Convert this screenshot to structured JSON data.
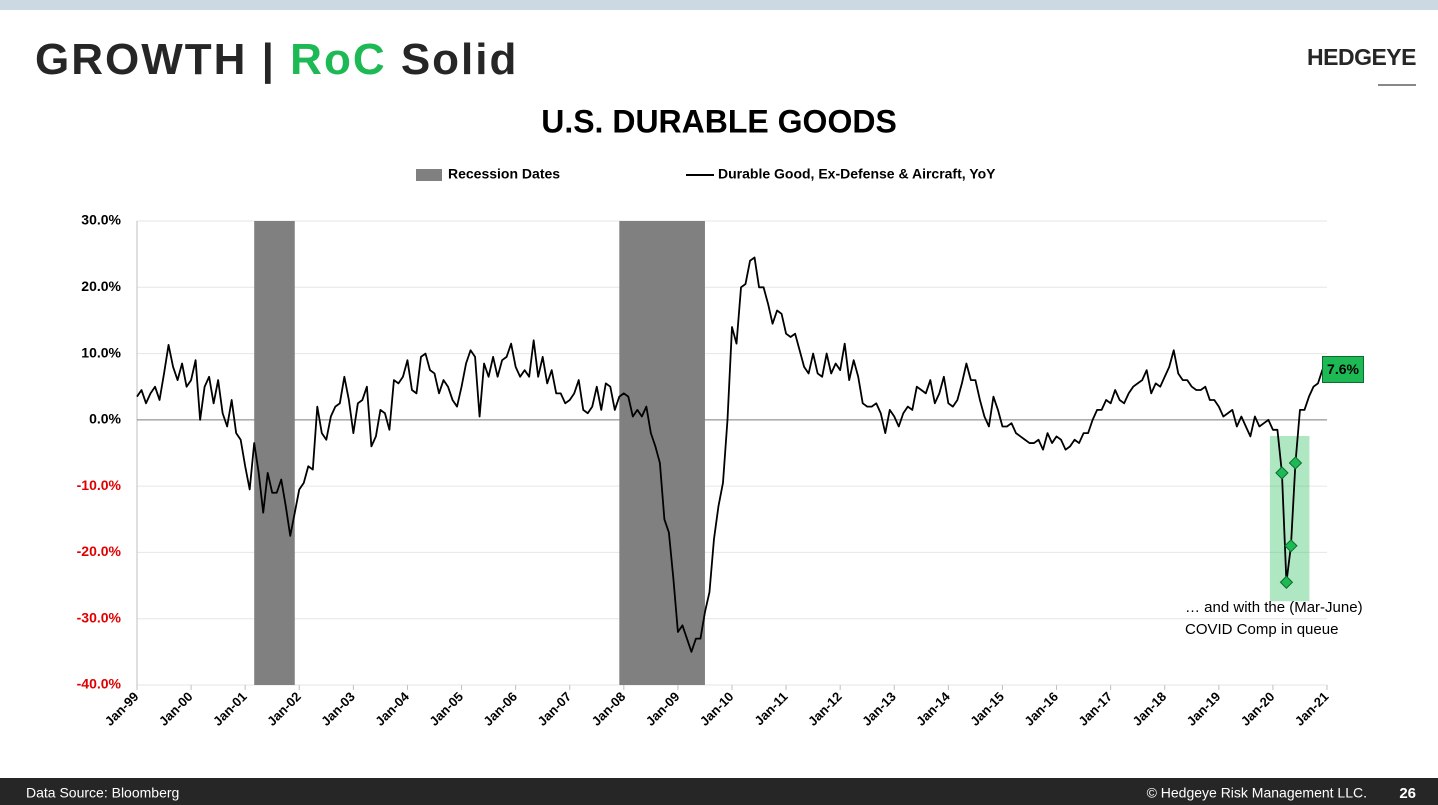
{
  "header": {
    "title_parts": [
      "GROWTH | ",
      "RoC",
      " Solid"
    ],
    "logo": "HEDGEYE"
  },
  "footer": {
    "source": "Data Source: Bloomberg",
    "copyright": "© Hedgeye Risk Management LLC.",
    "page": "26"
  },
  "chart_data": {
    "type": "line",
    "title": "U.S. DURABLE GOODS",
    "categories": [
      "Jan-99",
      null,
      null,
      null,
      null,
      null,
      null,
      null,
      null,
      null,
      null,
      null,
      "Jan-00",
      null,
      null,
      null,
      null,
      null,
      null,
      null,
      null,
      null,
      null,
      null,
      "Jan-01",
      null,
      null,
      null,
      null,
      null,
      null,
      null,
      null,
      null,
      null,
      null,
      "Jan-02",
      null,
      null,
      null,
      null,
      null,
      null,
      null,
      null,
      null,
      null,
      null,
      "Jan-03",
      null,
      null,
      null,
      null,
      null,
      null,
      null,
      null,
      null,
      null,
      null,
      "Jan-04",
      null,
      null,
      null,
      null,
      null,
      null,
      null,
      null,
      null,
      null,
      null,
      "Jan-05",
      null,
      null,
      null,
      null,
      null,
      null,
      null,
      null,
      null,
      null,
      null,
      "Jan-06",
      null,
      null,
      null,
      null,
      null,
      null,
      null,
      null,
      null,
      null,
      null,
      "Jan-07",
      null,
      null,
      null,
      null,
      null,
      null,
      null,
      null,
      null,
      null,
      null,
      "Jan-08",
      null,
      null,
      null,
      null,
      null,
      null,
      null,
      null,
      null,
      null,
      null,
      "Jan-09",
      null,
      null,
      null,
      null,
      null,
      null,
      null,
      null,
      null,
      null,
      null,
      "Jan-10",
      null,
      null,
      null,
      null,
      null,
      null,
      null,
      null,
      null,
      null,
      null,
      "Jan-11",
      null,
      null,
      null,
      null,
      null,
      null,
      null,
      null,
      null,
      null,
      null,
      "Jan-12",
      null,
      null,
      null,
      null,
      null,
      null,
      null,
      null,
      null,
      null,
      null,
      "Jan-13",
      null,
      null,
      null,
      null,
      null,
      null,
      null,
      null,
      null,
      null,
      null,
      "Jan-14",
      null,
      null,
      null,
      null,
      null,
      null,
      null,
      null,
      null,
      null,
      null,
      "Jan-15",
      null,
      null,
      null,
      null,
      null,
      null,
      null,
      null,
      null,
      null,
      null,
      "Jan-16",
      null,
      null,
      null,
      null,
      null,
      null,
      null,
      null,
      null,
      null,
      null,
      "Jan-17",
      null,
      null,
      null,
      null,
      null,
      null,
      null,
      null,
      null,
      null,
      null,
      "Jan-18",
      null,
      null,
      null,
      null,
      null,
      null,
      null,
      null,
      null,
      null,
      null,
      "Jan-19",
      null,
      null,
      null,
      null,
      null,
      null,
      null,
      null,
      null,
      null,
      null,
      "Jan-20",
      null,
      null,
      null,
      null,
      null,
      null,
      null,
      null,
      null,
      null,
      null,
      "Jan-21"
    ],
    "series": [
      {
        "name": "Recession Dates",
        "color": "#808080",
        "spans": [
          [
            26,
            35
          ],
          [
            107,
            126
          ]
        ]
      },
      {
        "name": "Durable Good, Ex-Defense & Aircraft, YoY",
        "color": "#000000",
        "values": [
          3.5,
          4.5,
          2.5,
          4,
          5,
          3,
          7,
          11.3,
          8,
          6,
          8.5,
          5,
          6,
          9,
          0,
          5,
          6.5,
          2.5,
          6,
          1,
          -1,
          3,
          -2,
          -3,
          -7,
          -10.5,
          -3.5,
          -8,
          -14,
          -8,
          -11,
          -11,
          -9,
          -13,
          -17.5,
          -14,
          -10.5,
          -9.5,
          -7,
          -7.5,
          2,
          -2,
          -3,
          0.5,
          2,
          2.5,
          6.5,
          3,
          -2,
          2.5,
          3,
          5,
          -4,
          -2.5,
          1.5,
          1,
          -1.5,
          6,
          5.5,
          6.5,
          9,
          4.5,
          4,
          9.5,
          10,
          7.5,
          7,
          4,
          6,
          5,
          3,
          2,
          5,
          8.5,
          10.5,
          9.5,
          0.5,
          8.5,
          6.5,
          9.5,
          6.5,
          9,
          9.5,
          11.5,
          8,
          6.5,
          7.5,
          6.5,
          12,
          6.5,
          9.5,
          5.5,
          7.5,
          4,
          4,
          2.5,
          3,
          4,
          6,
          1.5,
          1,
          2,
          5,
          1.5,
          5.5,
          5,
          1.5,
          3.5,
          4,
          3.5,
          0.5,
          1.5,
          0.5,
          2,
          -2,
          -4,
          -6.5,
          -15,
          -17,
          -24,
          -32,
          -31,
          -33,
          -35,
          -33,
          -33,
          -29,
          -26,
          -18,
          -13,
          -9.5,
          0,
          14,
          11.5,
          20,
          20.5,
          24,
          24.5,
          20,
          20,
          17.5,
          14.5,
          16.5,
          16,
          13,
          12.5,
          13,
          10.5,
          8,
          7,
          10,
          7,
          6.5,
          10,
          7,
          8.5,
          7.5,
          11.5,
          6,
          9,
          6.5,
          2.5,
          2,
          2,
          2.5,
          1,
          -2,
          1.5,
          0.5,
          -1,
          1,
          2,
          1.5,
          5,
          4.5,
          4,
          6,
          2.5,
          4,
          6.5,
          2.5,
          2,
          3,
          5.5,
          8.5,
          6,
          6,
          3,
          0.5,
          -1,
          3.5,
          1.5,
          -1,
          -1,
          -0.5,
          -2,
          -2.5,
          -3,
          -3.5,
          -3.5,
          -3,
          -4.5,
          -2,
          -3.5,
          -2.5,
          -3,
          -4.5,
          -4,
          -3,
          -3.5,
          -2,
          -2,
          0,
          1.5,
          1.5,
          3,
          2.5,
          4.5,
          3,
          2.5,
          4,
          5,
          5.5,
          6,
          7.5,
          4,
          5.5,
          5,
          6.5,
          8,
          10.5,
          7,
          6,
          6,
          5,
          4.5,
          4.5,
          5,
          3,
          3,
          2,
          0.5,
          1,
          1.5,
          -1,
          0.5,
          -1,
          -2.5,
          0.5,
          -1,
          -0.5,
          0,
          -1.5,
          -1.5,
          -8,
          -24.5,
          -19,
          -6.5,
          1.5,
          1.5,
          3.5,
          5,
          5.5,
          7.6,
          null
        ]
      }
    ],
    "end_label": "7.6%",
    "highlight": {
      "indices": [
        254,
        255,
        256,
        257
      ],
      "color": "#1db954"
    },
    "annotation": [
      "… and with the (Mar-June)",
      "COVID Comp in queue"
    ],
    "ylim": [
      -40,
      30
    ],
    "yticks": [
      {
        "value": -40,
        "label": "-40.0%"
      },
      {
        "value": -30,
        "label": "-30.0%"
      },
      {
        "value": -20,
        "label": "-20.0%"
      },
      {
        "value": -10,
        "label": "-10.0%"
      },
      {
        "value": 0,
        "label": "0.0%"
      },
      {
        "value": 10,
        "label": "10.0%"
      },
      {
        "value": 20,
        "label": "20.0%"
      },
      {
        "value": 30,
        "label": "30.0%"
      }
    ],
    "negative_tick_color": "#e00000",
    "grid": true
  }
}
